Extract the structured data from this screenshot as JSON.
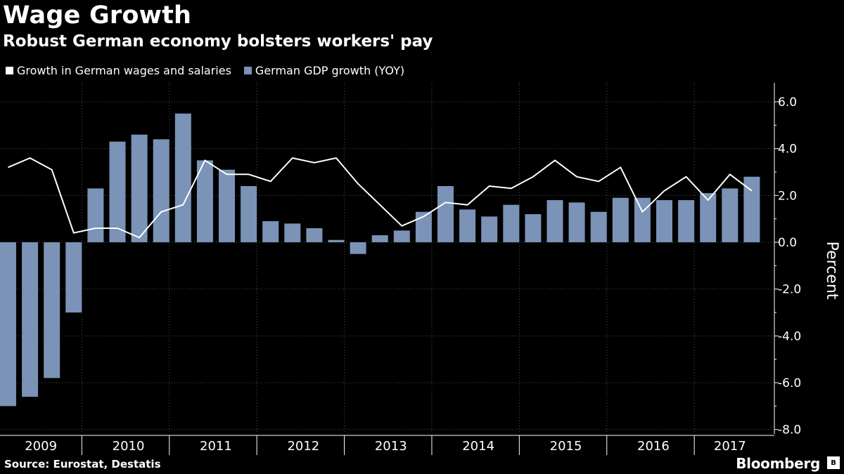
{
  "header": {
    "title": "Wage Growth",
    "subtitle": "Robust German economy bolsters workers' pay"
  },
  "legend": {
    "items": [
      {
        "label": "Growth in German wages and salaries",
        "color": "#ffffff"
      },
      {
        "label": "German GDP growth (YOY)",
        "color": "#7a93b6"
      }
    ]
  },
  "footer": {
    "source": "Source: Eurostat, Destatis",
    "brand": "Bloomberg",
    "brand_logo": "B"
  },
  "chart_data": {
    "type": "bar",
    "ylabel": "Percent",
    "ylim": [
      -8.0,
      7.0
    ],
    "yticks": [
      6.0,
      4.0,
      2.0,
      0.0,
      -2.0,
      -4.0,
      -6.0,
      -8.0
    ],
    "year_labels": [
      "2009",
      "2010",
      "2011",
      "2012",
      "2013",
      "2014",
      "2015",
      "2016",
      "2017"
    ],
    "categories": [
      "2009 Q1",
      "2009 Q2",
      "2009 Q3",
      "2009 Q4",
      "2010 Q1",
      "2010 Q2",
      "2010 Q3",
      "2010 Q4",
      "2011 Q1",
      "2011 Q2",
      "2011 Q3",
      "2011 Q4",
      "2012 Q1",
      "2012 Q2",
      "2012 Q3",
      "2012 Q4",
      "2013 Q1",
      "2013 Q2",
      "2013 Q3",
      "2013 Q4",
      "2014 Q1",
      "2014 Q2",
      "2014 Q3",
      "2014 Q4",
      "2015 Q1",
      "2015 Q2",
      "2015 Q3",
      "2015 Q4",
      "2016 Q1",
      "2016 Q2",
      "2016 Q3",
      "2016 Q4",
      "2017 Q1",
      "2017 Q2",
      "2017 Q3"
    ],
    "series": [
      {
        "name": "German GDP growth (YOY)",
        "kind": "bar",
        "color": "#7a93b6",
        "values": [
          -7.0,
          -6.6,
          -5.8,
          -3.0,
          2.3,
          4.3,
          4.6,
          4.4,
          5.5,
          3.5,
          3.1,
          2.4,
          0.9,
          0.8,
          0.6,
          0.1,
          -0.5,
          0.3,
          0.5,
          1.3,
          2.4,
          1.4,
          1.1,
          1.6,
          1.2,
          1.8,
          1.7,
          1.3,
          1.9,
          1.9,
          1.8,
          1.8,
          2.1,
          2.3,
          2.8
        ]
      },
      {
        "name": "Growth in German wages and salaries",
        "kind": "line",
        "color": "#ffffff",
        "values": [
          3.2,
          3.6,
          3.1,
          0.4,
          0.6,
          0.6,
          0.2,
          1.3,
          1.6,
          3.5,
          2.9,
          2.9,
          2.6,
          3.6,
          3.4,
          3.6,
          2.5,
          1.6,
          0.7,
          1.1,
          1.7,
          1.6,
          2.4,
          2.3,
          2.8,
          3.5,
          2.8,
          2.6,
          3.2,
          1.3,
          2.2,
          2.8,
          1.8,
          2.9,
          2.2
        ]
      }
    ],
    "grid": true,
    "legend_position": "top-left"
  }
}
